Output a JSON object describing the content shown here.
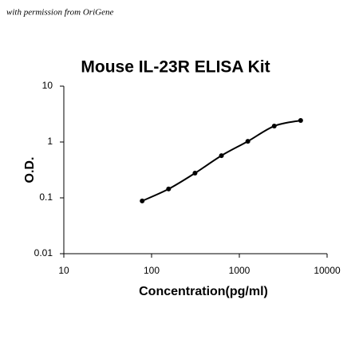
{
  "chart_data": {
    "type": "scatter",
    "title": "Mouse IL-23R ELISA Kit",
    "annotations": [
      "with permission from OriGene"
    ],
    "xlabel": "Concentration(pg/ml)",
    "ylabel": "O.D.",
    "x": [
      78.125,
      156.25,
      312.5,
      625,
      1250,
      2500,
      5000
    ],
    "series": [
      {
        "color": "#000000",
        "values": [
          0.088,
          0.144,
          0.277,
          0.57,
          1.03,
          1.93,
          2.43
        ]
      }
    ],
    "xscale": "log",
    "yscale": "log",
    "xlim": [
      10,
      10000
    ],
    "ylim": [
      0.01,
      10
    ],
    "xticks": [
      10,
      100,
      1000,
      10000
    ],
    "yticks": [
      0.01,
      0.1,
      1,
      10
    ],
    "line": true
  }
}
